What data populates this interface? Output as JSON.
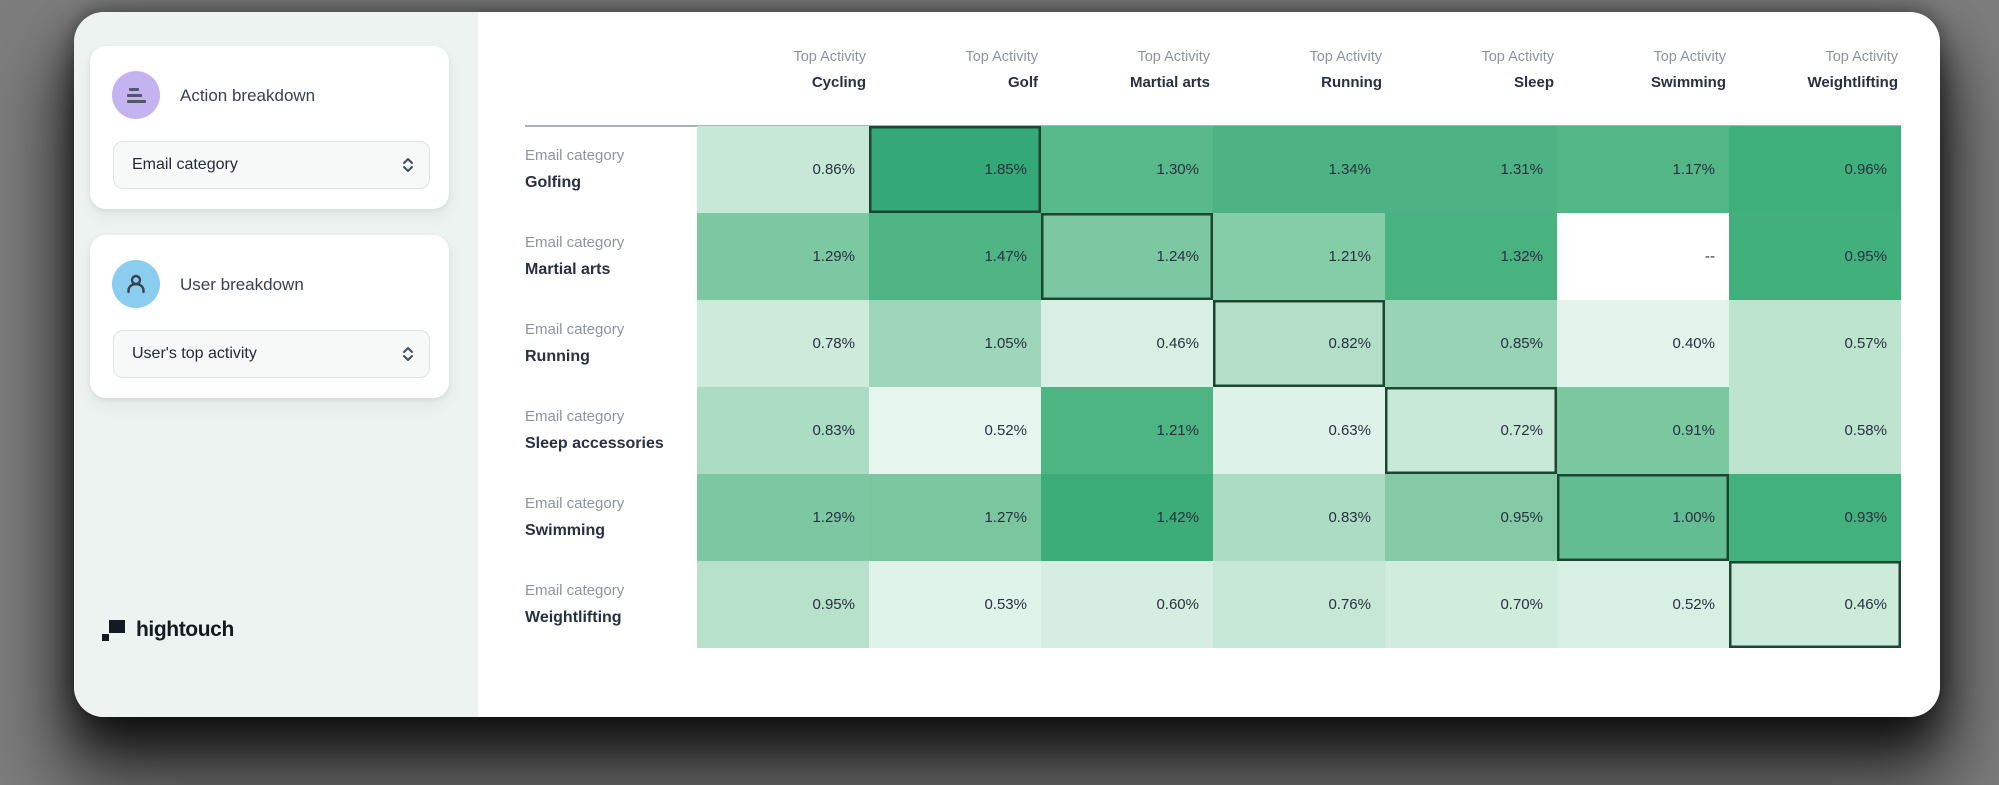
{
  "page": {
    "background_color": "#7d7d7d",
    "canvas_color": "#ffffff",
    "sidebar_color": "#edf3f0"
  },
  "sidebar": {
    "cards": [
      {
        "icon": "breakdown-icon",
        "icon_bg": "#c3b3f0",
        "title": "Action breakdown",
        "dropdown_value": "Email category"
      },
      {
        "icon": "user-icon",
        "icon_bg": "#8bcdef",
        "title": "User breakdown",
        "dropdown_value": "User's top activity"
      }
    ],
    "logo_text": "hightouch"
  },
  "chart_data": {
    "type": "heatmap",
    "column_header_prefix": "Top Activity",
    "row_header_prefix": "Email category",
    "columns": [
      "Cycling",
      "Golf",
      "Martial arts",
      "Running",
      "Sleep",
      "Swimming",
      "Weightlifting"
    ],
    "rows": [
      "Golfing",
      "Martial arts",
      "Running",
      "Sleep accessories",
      "Swimming",
      "Weightlifting"
    ],
    "unit": "%",
    "values": [
      [
        "0.86%",
        "1.85%",
        "1.30%",
        "1.34%",
        "1.31%",
        "1.17%",
        "0.96%"
      ],
      [
        "1.29%",
        "1.47%",
        "1.24%",
        "1.21%",
        "1.32%",
        "--",
        "0.95%"
      ],
      [
        "0.78%",
        "1.05%",
        "0.46%",
        "0.82%",
        "0.85%",
        "0.40%",
        "0.57%"
      ],
      [
        "0.83%",
        "0.52%",
        "1.21%",
        "0.63%",
        "0.72%",
        "0.91%",
        "0.58%"
      ],
      [
        "1.29%",
        "1.27%",
        "1.42%",
        "0.83%",
        "0.95%",
        "1.00%",
        "0.93%"
      ],
      [
        "0.95%",
        "0.53%",
        "0.60%",
        "0.76%",
        "0.70%",
        "0.52%",
        "0.46%"
      ]
    ],
    "missing_placeholder": "--",
    "cell_colors": [
      [
        "#c7e8d6",
        "#34a876",
        "#58b98b",
        "#4db384",
        "#4db384",
        "#53b687",
        "#3fb07c"
      ],
      [
        "#7cc8a2",
        "#4fb585",
        "#7cc8a2",
        "#85cca8",
        "#48b281",
        "#ffffff",
        "#41b07d"
      ],
      [
        "#cdeadb",
        "#9dd6ba",
        "#d8f0e3",
        "#b3dfc9",
        "#98d3b5",
        "#e3f4ec",
        "#bde4cf"
      ],
      [
        "#abdcc4",
        "#e6f6ee",
        "#4db483",
        "#ddf2e8",
        "#c9e9d8",
        "#7ac7a0",
        "#bde4cf"
      ],
      [
        "#7cc8a2",
        "#79c69f",
        "#3cad79",
        "#addcc5",
        "#84caa6",
        "#62bd92",
        "#43b17e"
      ],
      [
        "#b7e1cb",
        "#e0f3ea",
        "#d5eee1",
        "#c6e7d5",
        "#cfecdc",
        "#d8f0e3",
        "#cdebdb"
      ]
    ],
    "highlighted_cells": [
      [
        0,
        1
      ],
      [
        1,
        2
      ],
      [
        2,
        3
      ],
      [
        3,
        4
      ],
      [
        4,
        5
      ],
      [
        5,
        6
      ]
    ],
    "highlight_border_color": "#1d4632"
  }
}
